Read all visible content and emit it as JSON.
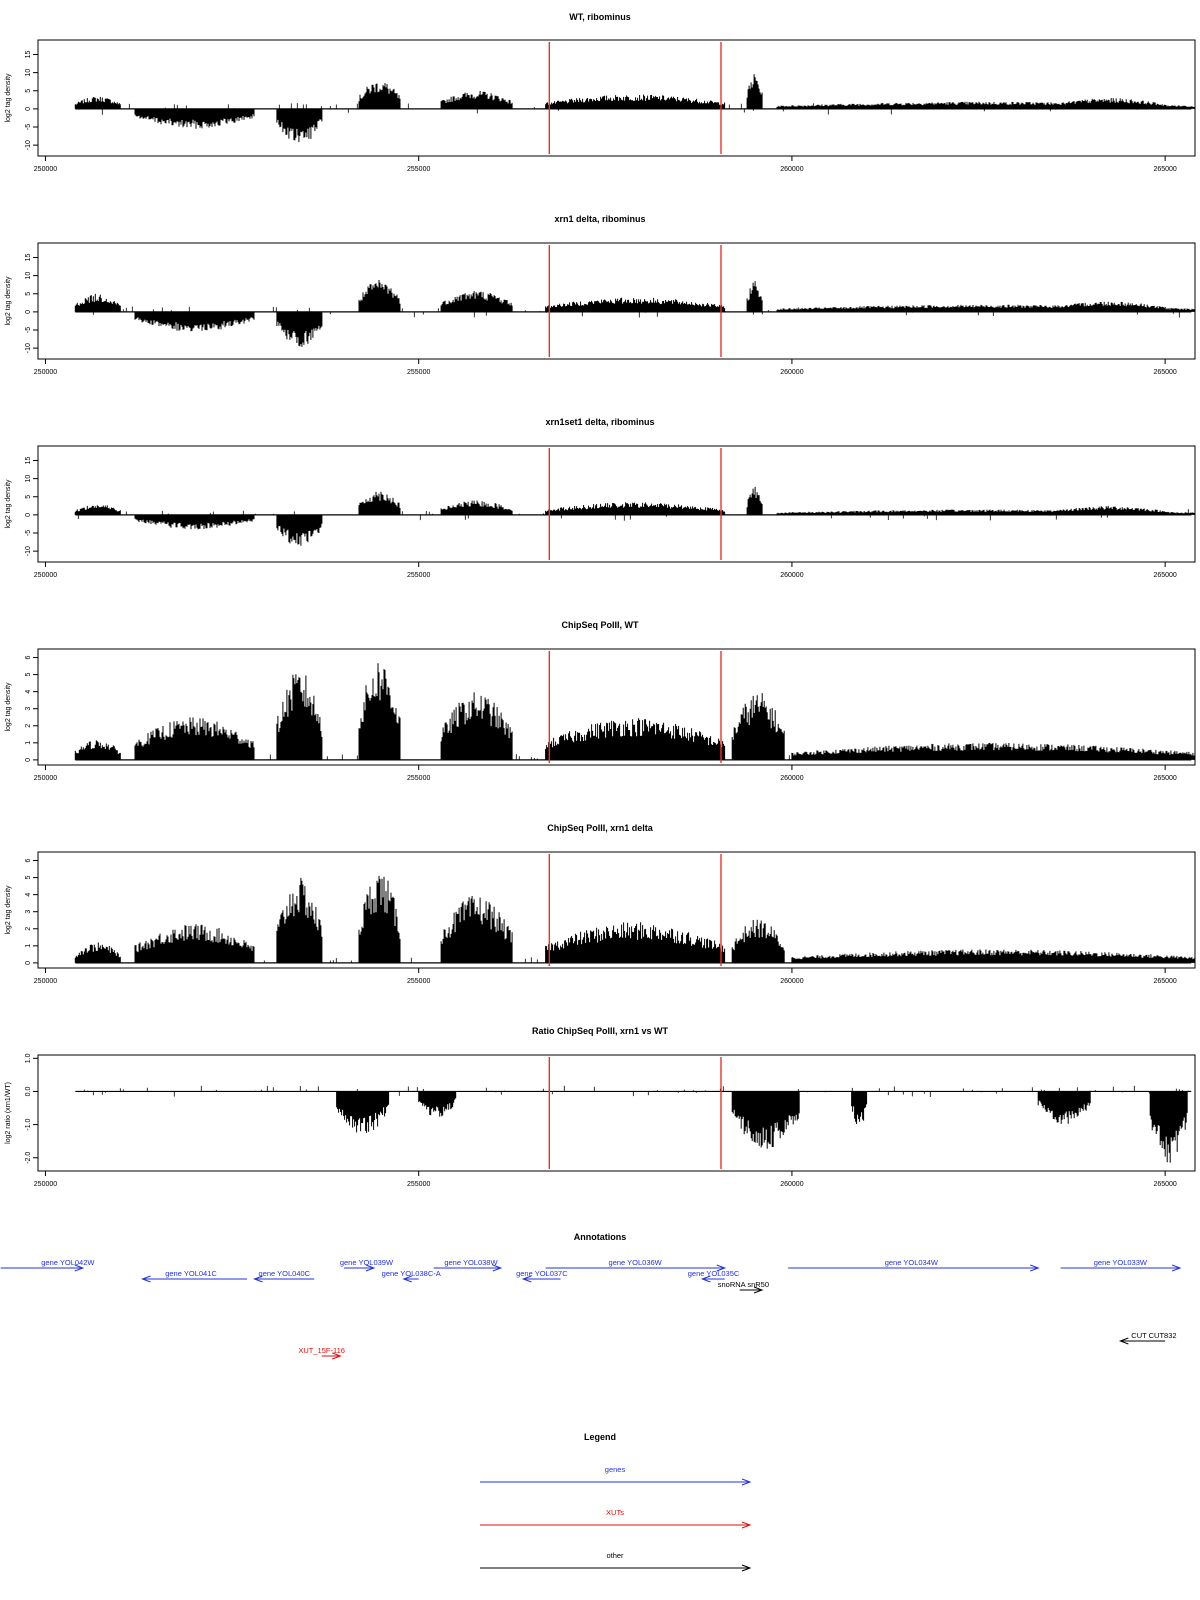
{
  "colors": {
    "signal": "#000000",
    "marker": "#e8332a",
    "gene": "#2233dd",
    "xut": "#dd1111",
    "other": "#000000"
  },
  "markers": [
    256750,
    259050
  ],
  "chart_data": [
    {
      "type": "area",
      "title": "WT, ribominus",
      "ylabel": "log2 tag density",
      "xlim": [
        249900,
        265400
      ],
      "ylim": [
        -13,
        19
      ],
      "yticks": [
        -10,
        -5,
        0,
        5,
        10,
        15
      ],
      "xticks": [
        250000,
        255000,
        260000,
        265000
      ],
      "xtick_labels": [
        "250000",
        "255000",
        "260000",
        "265000"
      ],
      "baseline": 0,
      "grid": false,
      "segments": [
        {
          "x": [
            250400,
            251000
          ],
          "y": 3.5
        },
        {
          "x": [
            251200,
            252800
          ],
          "y": -5.5
        },
        {
          "x": [
            253100,
            253700
          ],
          "y": -10
        },
        {
          "x": [
            254200,
            254750
          ],
          "y": 8
        },
        {
          "x": [
            255300,
            256250
          ],
          "y": 5
        },
        {
          "x": [
            256700,
            259100
          ],
          "y": 4
        },
        {
          "x": [
            259400,
            259600
          ],
          "y": 10
        },
        {
          "x": [
            259800,
            265400
          ],
          "y": 2
        },
        {
          "x": [
            263500,
            265000
          ],
          "y": 3
        }
      ]
    },
    {
      "type": "area",
      "title": "xrn1 delta, ribominus",
      "ylabel": "log2 tag density",
      "xlim": [
        249900,
        265400
      ],
      "ylim": [
        -13,
        19
      ],
      "yticks": [
        -10,
        -5,
        0,
        5,
        10,
        15
      ],
      "xticks": [
        250000,
        255000,
        260000,
        265000
      ],
      "xtick_labels": [
        "250000",
        "255000",
        "260000",
        "265000"
      ],
      "baseline": 0,
      "grid": false,
      "segments": [
        {
          "x": [
            250400,
            251000
          ],
          "y": 5
        },
        {
          "x": [
            251200,
            252800
          ],
          "y": -5.5
        },
        {
          "x": [
            253100,
            253700
          ],
          "y": -10
        },
        {
          "x": [
            254200,
            254750
          ],
          "y": 9
        },
        {
          "x": [
            255300,
            256250
          ],
          "y": 6
        },
        {
          "x": [
            256700,
            259100
          ],
          "y": 4
        },
        {
          "x": [
            259400,
            259600
          ],
          "y": 9
        },
        {
          "x": [
            259800,
            265400
          ],
          "y": 2
        },
        {
          "x": [
            263500,
            265000
          ],
          "y": 3
        }
      ]
    },
    {
      "type": "area",
      "title": "xrn1set1 delta, ribominus",
      "ylabel": "log2 tag density",
      "xlim": [
        249900,
        265400
      ],
      "ylim": [
        -13,
        19
      ],
      "yticks": [
        -10,
        -5,
        0,
        5,
        10,
        15
      ],
      "xticks": [
        250000,
        255000,
        260000,
        265000
      ],
      "xtick_labels": [
        "250000",
        "255000",
        "260000",
        "265000"
      ],
      "baseline": 0,
      "grid": false,
      "segments": [
        {
          "x": [
            250400,
            251000
          ],
          "y": 3
        },
        {
          "x": [
            251200,
            252800
          ],
          "y": -4
        },
        {
          "x": [
            253100,
            253700
          ],
          "y": -9
        },
        {
          "x": [
            254200,
            254750
          ],
          "y": 7
        },
        {
          "x": [
            255300,
            256250
          ],
          "y": 4
        },
        {
          "x": [
            256700,
            259100
          ],
          "y": 3.5
        },
        {
          "x": [
            259400,
            259600
          ],
          "y": 8
        },
        {
          "x": [
            259800,
            265400
          ],
          "y": 1.5
        },
        {
          "x": [
            263500,
            265000
          ],
          "y": 2.5
        }
      ]
    },
    {
      "type": "area",
      "title": "ChipSeq PolII, WT",
      "ylabel": "log2 tag density",
      "xlim": [
        249900,
        265400
      ],
      "ylim": [
        -0.3,
        6.5
      ],
      "yticks": [
        0,
        1,
        2,
        3,
        4,
        5,
        6
      ],
      "xticks": [
        250000,
        255000,
        260000,
        265000
      ],
      "xtick_labels": [
        "250000",
        "255000",
        "260000",
        "265000"
      ],
      "baseline": 0,
      "grid": false,
      "segments": [
        {
          "x": [
            250400,
            251000
          ],
          "y": 1.2
        },
        {
          "x": [
            251200,
            252800
          ],
          "y": 2.5
        },
        {
          "x": [
            253100,
            253700
          ],
          "y": 5.3
        },
        {
          "x": [
            254200,
            254750
          ],
          "y": 6
        },
        {
          "x": [
            255300,
            256250
          ],
          "y": 4
        },
        {
          "x": [
            256700,
            259100
          ],
          "y": 2.5
        },
        {
          "x": [
            259200,
            259900
          ],
          "y": 4
        },
        {
          "x": [
            260000,
            265400
          ],
          "y": 1
        }
      ]
    },
    {
      "type": "area",
      "title": "ChipSeq PolII, xrn1 delta",
      "ylabel": "log2 tag density",
      "xlim": [
        249900,
        265400
      ],
      "ylim": [
        -0.3,
        6.5
      ],
      "yticks": [
        0,
        1,
        2,
        3,
        4,
        5,
        6
      ],
      "xticks": [
        250000,
        255000,
        260000,
        265000
      ],
      "xtick_labels": [
        "250000",
        "255000",
        "260000",
        "265000"
      ],
      "baseline": 0,
      "grid": false,
      "segments": [
        {
          "x": [
            250400,
            251000
          ],
          "y": 1.2
        },
        {
          "x": [
            251200,
            252800
          ],
          "y": 2.3
        },
        {
          "x": [
            253100,
            253700
          ],
          "y": 5
        },
        {
          "x": [
            254200,
            254750
          ],
          "y": 5.5
        },
        {
          "x": [
            255300,
            256250
          ],
          "y": 4
        },
        {
          "x": [
            256700,
            259100
          ],
          "y": 2.4
        },
        {
          "x": [
            259200,
            259900
          ],
          "y": 2.6
        },
        {
          "x": [
            260000,
            265400
          ],
          "y": 0.8
        }
      ]
    },
    {
      "type": "area",
      "title": "Ratio ChipSeq PolII, xrn1 vs WT",
      "ylabel": "log2 ratio (xrn1/WT)",
      "xlim": [
        249900,
        265400
      ],
      "ylim": [
        -2.4,
        1.1
      ],
      "yticks": [
        -2,
        -1,
        0,
        1
      ],
      "ytick_labels": [
        "-2.0",
        "-1.0",
        "0.0",
        "1.0"
      ],
      "xticks": [
        250000,
        255000,
        260000,
        265000
      ],
      "xtick_labels": [
        "250000",
        "255000",
        "260000",
        "265000"
      ],
      "baseline": 0,
      "grid": false,
      "segments": [
        {
          "x": [
            253900,
            254600
          ],
          "y": -1.4
        },
        {
          "x": [
            255000,
            255500
          ],
          "y": -0.8
        },
        {
          "x": [
            259200,
            260100
          ],
          "y": -1.8
        },
        {
          "x": [
            260800,
            261000
          ],
          "y": -1.2
        },
        {
          "x": [
            263300,
            264000
          ],
          "y": -1
        },
        {
          "x": [
            264800,
            265300
          ],
          "y": -2.2
        }
      ]
    }
  ],
  "annotations": {
    "title": "Annotations",
    "genes": [
      {
        "label": "gene YOL042W",
        "start": 249400,
        "end": 250500,
        "strand": "+",
        "row": 0,
        "lx": 250300
      },
      {
        "label": "gene YOL041C",
        "start": 251300,
        "end": 252700,
        "strand": "-",
        "row": 1,
        "lx": 251950
      },
      {
        "label": "gene YOL040C",
        "start": 252800,
        "end": 253600,
        "strand": "-",
        "row": 1,
        "lx": 253200
      },
      {
        "label": "gene YOL039W",
        "start": 254000,
        "end": 254400,
        "strand": "+",
        "row": 0,
        "lx": 254300
      },
      {
        "label": "gene YOL038C-A",
        "start": 254800,
        "end": 255000,
        "strand": "-",
        "row": 1,
        "lx": 254900
      },
      {
        "label": "gene YOL038W",
        "start": 255200,
        "end": 256100,
        "strand": "+",
        "row": 0,
        "lx": 255700
      },
      {
        "label": "gene YOL037C",
        "start": 256400,
        "end": 256900,
        "strand": "-",
        "row": 1,
        "lx": 256650
      },
      {
        "label": "gene YOL036W",
        "start": 256700,
        "end": 259100,
        "strand": "+",
        "row": 0,
        "lx": 257900
      },
      {
        "label": "gene YOL035C",
        "start": 258800,
        "end": 259100,
        "strand": "-",
        "row": 1,
        "lx": 258950
      },
      {
        "label": "gene YOL034W",
        "start": 259950,
        "end": 263300,
        "strand": "+",
        "row": 0,
        "lx": 261600
      },
      {
        "label": "gene YOL033W",
        "start": 263600,
        "end": 265200,
        "strand": "+",
        "row": 0,
        "lx": 264400
      }
    ],
    "xuts": [
      {
        "label": "XUT_15F-116",
        "start": 253700,
        "end": 253950,
        "strand": "+",
        "lx": 253700
      }
    ],
    "others": [
      {
        "label": "snoRNA snR50",
        "start": 259300,
        "end": 259600,
        "strand": "+",
        "row": 2,
        "lx": 259350
      },
      {
        "label": "CUT CUT832",
        "start": 264400,
        "end": 265000,
        "strand": "-",
        "row": 3,
        "lx": 264850
      }
    ]
  },
  "legend": {
    "title": "Legend",
    "items": [
      {
        "label": "genes",
        "color": "#2233dd"
      },
      {
        "label": "XUTs",
        "color": "#dd1111"
      },
      {
        "label": "other",
        "color": "#000000"
      }
    ]
  }
}
